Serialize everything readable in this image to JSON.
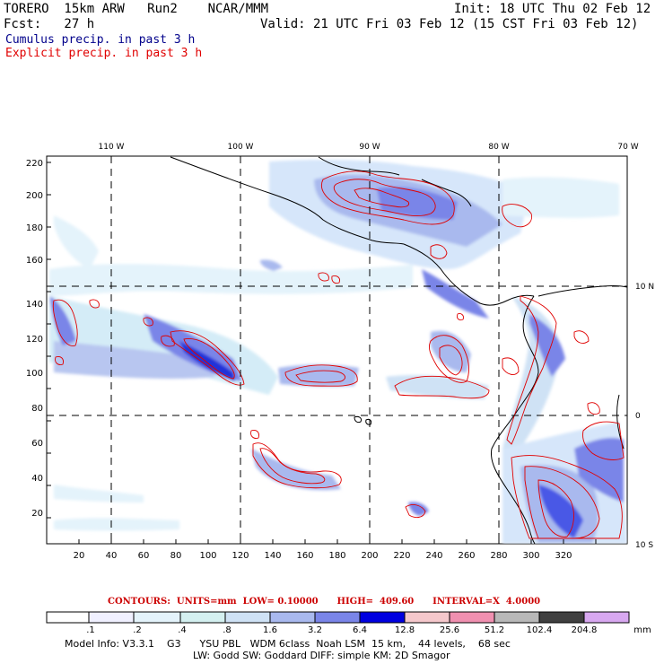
{
  "header": {
    "model": "TORERO  15km ARW   Run2    NCAR/MMM",
    "init": "Init: 18 UTC Thu 02 Feb 12",
    "fcst": "Fcst:   27 h",
    "valid": "Valid: 21 UTC Fri 03 Feb 12 (15 CST Fri 03 Feb 12)"
  },
  "legend": {
    "cumulus": "Cumulus precip. in past 3 h",
    "explicit": "Explicit precip. in past 3 h",
    "cumulus_color": "#00008b",
    "explicit_color": "#e00000"
  },
  "map": {
    "lon_labels": [
      "110 W",
      "100 W",
      "90 W",
      "80 W",
      "70 W"
    ],
    "lat_labels": [
      "10 N",
      "0",
      "10 S"
    ],
    "y_ticks": [
      "220",
      "200",
      "180",
      "160",
      "140",
      "120",
      "100",
      "80",
      "60",
      "40",
      "20"
    ],
    "x_ticks": [
      "20",
      "40",
      "60",
      "80",
      "100",
      "120",
      "140",
      "160",
      "180",
      "200",
      "220",
      "240",
      "260",
      "280",
      "300",
      "320"
    ]
  },
  "contour_info": "CONTOURS:  UNITS=mm  LOW= 0.10000      HIGH=  409.60      INTERVAL=X  4.0000",
  "colorbar": {
    "labels": [
      ".1",
      ".2",
      ".4",
      ".8",
      "1.6",
      "3.2",
      "6.4",
      "12.8",
      "25.6",
      "51.2",
      "102.4",
      "204.8"
    ],
    "unit": "mm",
    "colors": [
      "#ffffff",
      "#f0f0ff",
      "#e4f3fb",
      "#d4f0f0",
      "#cfe2f5",
      "#a9b9ee",
      "#7a85e8",
      "#4a58e6",
      "#0000e0",
      "#f5c8cc",
      "#f090b0",
      "#b8b8b8",
      "#404040",
      "#d8a8f0"
    ]
  },
  "model_info": {
    "line1": "Model Info: V3.3.1    G3      YSU PBL   WDM 6class  Noah LSM  15 km,    44 levels,    68 sec",
    "line2": "LW: Godd SW: Goddard DIFF: simple KM: 2D Smagor"
  }
}
